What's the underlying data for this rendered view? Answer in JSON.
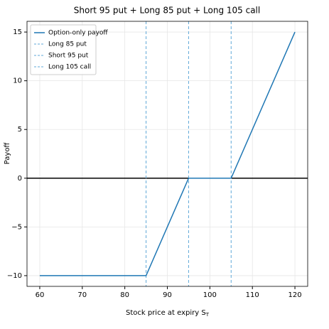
{
  "chart_data": {
    "type": "line",
    "title": "Short 95 put + Long 85 put + Long 105 call",
    "xlabel": "Stock price at expiry S_T",
    "ylabel": "Payoff",
    "x": [
      60,
      85,
      95,
      105,
      120
    ],
    "series": [
      {
        "name": "Option-only payoff",
        "color": "#1f77b4",
        "values": [
          -10,
          -10,
          0,
          0,
          15
        ]
      }
    ],
    "vlines": [
      {
        "name": "Long 85 put",
        "x": 85,
        "color": "#5fa8d8"
      },
      {
        "name": "Short 95 put",
        "x": 95,
        "color": "#5fa8d8"
      },
      {
        "name": "Long 105 call",
        "x": 105,
        "color": "#5fa8d8"
      }
    ],
    "hline": {
      "y": 0,
      "color": "#000000"
    },
    "xlim": [
      57,
      123
    ],
    "ylim": [
      -11.1,
      16.1
    ],
    "xticks": [
      60,
      70,
      80,
      90,
      100,
      110,
      120
    ],
    "yticks": [
      {
        "value": -10,
        "label": "−10"
      },
      {
        "value": -5,
        "label": "−5"
      },
      0,
      5,
      10,
      15
    ],
    "grid": true,
    "legend": "upper left"
  }
}
